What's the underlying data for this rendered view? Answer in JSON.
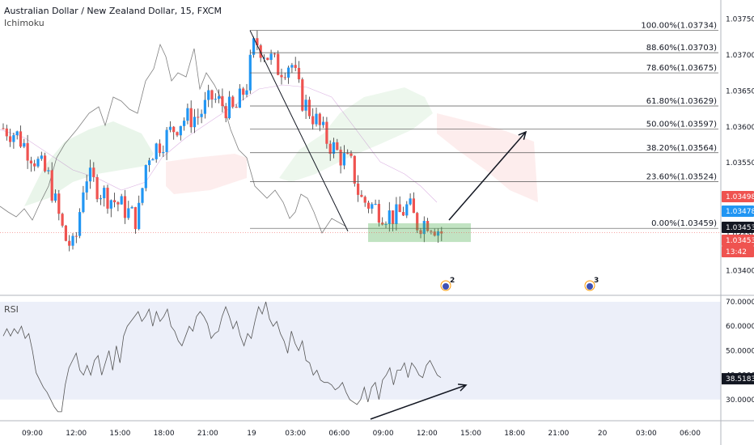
{
  "header": {
    "title": "Australian Dollar / New Zealand Dollar, 15, FXCM",
    "indicator": "Ichimoku"
  },
  "rsi_label": "RSI",
  "chart_data": {
    "type": "candlestick",
    "price_axis": {
      "ticks": [
        "1.03750",
        "1.03700",
        "1.03650",
        "1.03600",
        "1.03550",
        "1.03500",
        "1.03450",
        "1.03400"
      ],
      "range": [
        1.03385,
        1.03765
      ]
    },
    "time_axis": {
      "ticks": [
        "09:00",
        "12:00",
        "15:00",
        "18:00",
        "21:00",
        "19",
        "03:00",
        "06:00",
        "09:00",
        "12:00",
        "15:00",
        "18:00",
        "21:00",
        "20",
        "03:00",
        "06:00"
      ]
    },
    "price_labels": [
      {
        "value": "1.03498",
        "color": "#ef5350"
      },
      {
        "value": "1.03478",
        "color": "#2196f3"
      },
      {
        "value": "1.03453",
        "color": "#131722"
      },
      {
        "value": "1.03453",
        "color": "#ef5350"
      },
      {
        "value": "13:42",
        "color": "#ef5350"
      }
    ],
    "fibonacci": [
      {
        "label": "100.00%(1.03734)",
        "value": 1.03734
      },
      {
        "label": "88.60%(1.03703)",
        "value": 1.03703
      },
      {
        "label": "78.60%(1.03675)",
        "value": 1.03675
      },
      {
        "label": "61.80%(1.03629)",
        "value": 1.03629
      },
      {
        "label": "50.00%(1.03597)",
        "value": 1.03597
      },
      {
        "label": "38.20%(1.03564)",
        "value": 1.03564
      },
      {
        "label": "23.60%(1.03524)",
        "value": 1.03524
      },
      {
        "label": "0.00%(1.03459)",
        "value": 1.03459
      }
    ],
    "events": [
      {
        "label": "2"
      },
      {
        "label": "3"
      }
    ],
    "rsi": {
      "ticks": [
        "70.0000",
        "60.0000",
        "50.0000",
        "40.0000",
        "30.0000"
      ],
      "range": [
        22,
        72
      ],
      "current": "38.5183",
      "values": [
        56,
        59,
        56,
        59,
        57,
        60,
        55,
        57,
        50,
        41,
        38,
        35,
        33,
        30,
        27,
        25,
        25,
        36,
        43,
        46,
        49,
        42,
        40,
        44,
        40,
        46,
        48,
        40,
        45,
        50,
        42,
        52,
        45,
        56,
        60,
        62,
        64,
        66,
        62,
        64,
        67,
        60,
        66,
        62,
        64,
        67,
        60,
        58,
        54,
        52,
        56,
        60,
        58,
        64,
        66,
        64,
        61,
        55,
        57,
        58,
        64,
        68,
        64,
        59,
        62,
        56,
        52,
        57,
        55,
        62,
        68,
        65,
        70,
        63,
        60,
        62,
        57,
        54,
        49,
        58,
        53,
        50,
        54,
        46,
        45,
        40,
        42,
        38,
        37,
        37,
        36,
        34,
        35,
        37,
        33,
        30,
        29,
        28,
        30,
        35,
        29,
        35,
        37,
        30,
        38,
        40,
        43,
        36,
        42,
        42,
        45,
        39,
        45,
        43,
        40,
        39,
        44,
        46,
        43,
        40,
        39
      ]
    }
  },
  "colors": {
    "up": "#2196f3",
    "down": "#ef5350",
    "cloud_green": "#4caf50",
    "cloud_red": "#ef5350",
    "rsi_band": "#eceff9"
  }
}
